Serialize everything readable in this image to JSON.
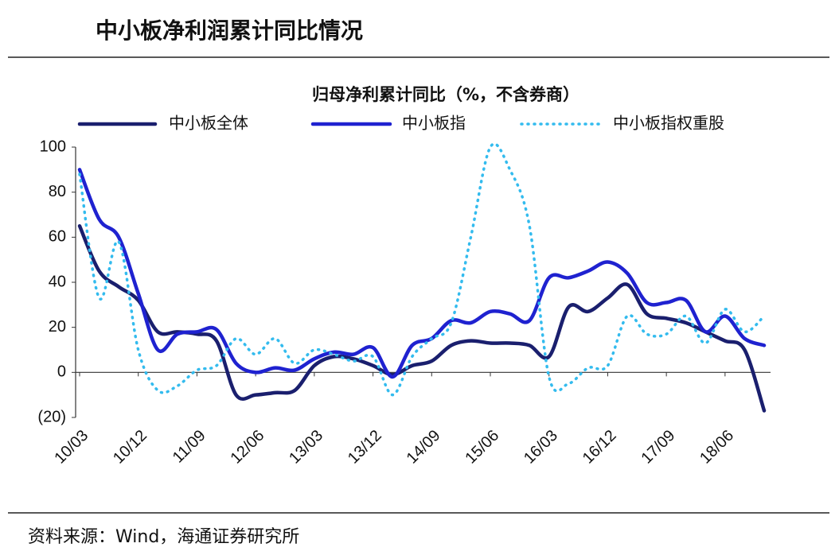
{
  "page_title": "中小板净利润累计同比情况",
  "source": "资料来源：Wind，海通证券研究所",
  "chart_data": {
    "type": "line",
    "title": "归母净利累计同比（%，不含券商）",
    "categories": [
      "10/03",
      null,
      null,
      "10/12",
      null,
      null,
      "11/09",
      null,
      null,
      "12/06",
      null,
      null,
      "13/03",
      null,
      null,
      "13/12",
      null,
      null,
      "14/09",
      null,
      null,
      "15/06",
      null,
      null,
      "16/03",
      null,
      null,
      "16/12",
      null,
      null,
      "17/09",
      null,
      null,
      "18/06",
      null,
      null
    ],
    "series": [
      {
        "name": "中小板全体",
        "color": "#1a1f6e",
        "dash": "solid",
        "values": [
          65,
          45,
          38,
          32,
          18,
          18,
          17,
          14,
          -10,
          -10,
          -9,
          -8,
          3,
          7,
          6,
          3,
          -1,
          3,
          5,
          12,
          14,
          13,
          13,
          12,
          7,
          29,
          27,
          33,
          39,
          26,
          24,
          22,
          18,
          14,
          10,
          -17
        ]
      },
      {
        "name": "中小板指",
        "color": "#1f22d0",
        "dash": "solid",
        "values": [
          90,
          68,
          60,
          35,
          10,
          17,
          18,
          19,
          4,
          0,
          2,
          1,
          6,
          9,
          8,
          11,
          -2,
          12,
          15,
          23,
          22,
          27,
          26,
          23,
          42,
          42,
          45,
          49,
          44,
          31,
          31,
          32,
          18,
          25,
          15,
          12
        ]
      },
      {
        "name": "中小板指权重股",
        "color": "#33bbee",
        "dash": "dotted",
        "values": [
          88,
          33,
          58,
          10,
          -8,
          -6,
          1,
          3,
          15,
          8,
          15,
          4,
          10,
          8,
          5,
          7,
          -10,
          7,
          15,
          22,
          60,
          100,
          90,
          65,
          -2,
          -5,
          2,
          3,
          25,
          17,
          17,
          25,
          13,
          28,
          18,
          25
        ]
      }
    ],
    "ylim": [
      -20,
      100
    ],
    "yticks": [
      {
        "value": -20,
        "label": "(20)"
      },
      0,
      20,
      40,
      60,
      80,
      100
    ]
  }
}
